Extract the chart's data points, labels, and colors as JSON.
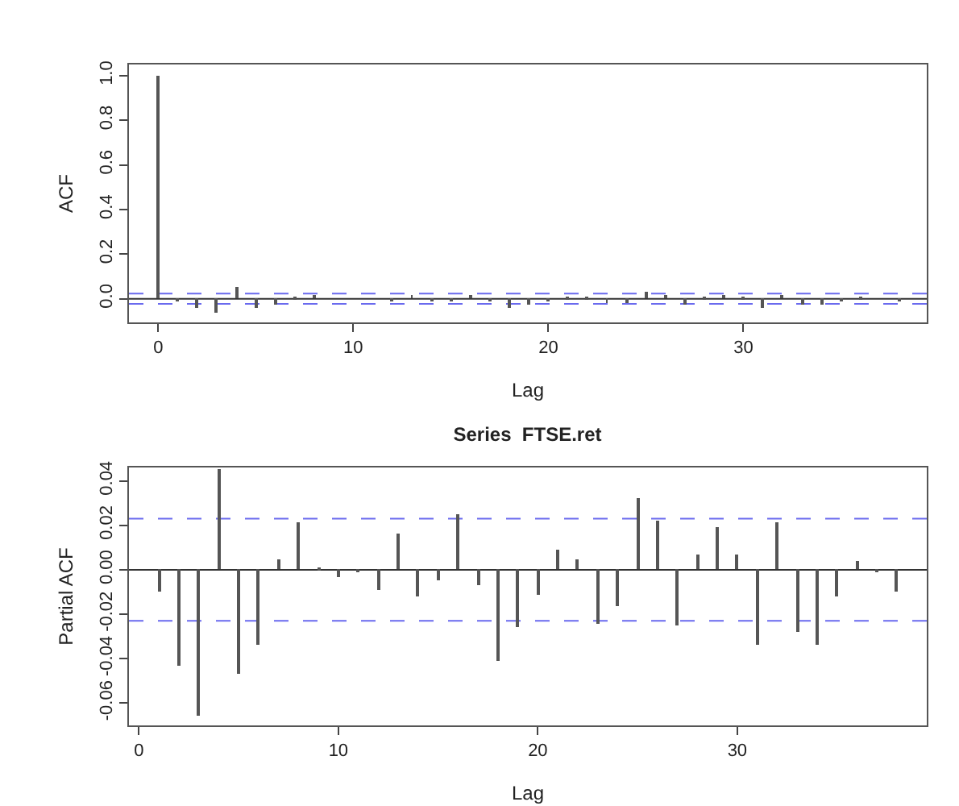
{
  "chart_data": [
    {
      "type": "bar",
      "xlabel": "Lag",
      "ylabel": "ACF",
      "x": [
        0,
        1,
        2,
        3,
        4,
        5,
        6,
        7,
        8,
        9,
        10,
        11,
        12,
        13,
        14,
        15,
        16,
        17,
        18,
        19,
        20,
        21,
        22,
        23,
        24,
        25,
        26,
        27,
        28,
        29,
        30,
        31,
        32,
        33,
        34,
        35,
        36,
        37,
        38
      ],
      "series": [
        {
          "color": "#555555",
          "values": [
            1,
            -0.01,
            -0.04,
            -0.06,
            0.05,
            -0.04,
            -0.03,
            0.01,
            0.02,
            0,
            0,
            0,
            -0.01,
            0.02,
            -0.01,
            -0.01,
            0.02,
            -0.01,
            -0.04,
            -0.03,
            -0.01,
            0.01,
            0.01,
            -0.02,
            -0.02,
            0.03,
            0.02,
            -0.03,
            0.01,
            0.02,
            0.01,
            -0.04,
            0.02,
            -0.03,
            -0.03,
            -0.01,
            0.01,
            0,
            -0.01
          ]
        }
      ],
      "xlim": [
        -1.5,
        39.4
      ],
      "xticks": [
        0,
        10,
        20,
        30
      ],
      "ylim": [
        -0.106,
        1.05
      ],
      "yticks": [
        {
          "value": 0,
          "label": "0.0"
        },
        0.2,
        0.4,
        0.6,
        0.8,
        {
          "value": 1,
          "label": "1.0"
        }
      ],
      "ref_lines": [
        {
          "axis": "y",
          "value": 0,
          "color": "#333333",
          "line_style": "solid"
        },
        {
          "axis": "y",
          "value": 0.023,
          "color": "#6a6aee",
          "line_style": "dashed"
        },
        {
          "axis": "y",
          "value": -0.023,
          "color": "#6a6aee",
          "line_style": "dashed"
        }
      ]
    },
    {
      "type": "bar",
      "title": "Series  FTSE.ret",
      "xlabel": "Lag",
      "ylabel": "Partial ACF",
      "x": [
        1,
        2,
        3,
        4,
        5,
        6,
        7,
        8,
        9,
        10,
        11,
        12,
        13,
        14,
        15,
        16,
        17,
        18,
        19,
        20,
        21,
        22,
        23,
        24,
        25,
        26,
        27,
        28,
        29,
        30,
        31,
        32,
        33,
        34,
        35,
        36,
        37,
        38
      ],
      "series": [
        {
          "color": "#555555",
          "values": [
            -0.01,
            -0.043,
            -0.066,
            0.045,
            -0.047,
            -0.034,
            0.005,
            0.021,
            0.001,
            -0.003,
            -0.001,
            -0.009,
            0.016,
            -0.012,
            -0.005,
            0.025,
            -0.007,
            -0.041,
            -0.026,
            -0.011,
            0.009,
            0.005,
            -0.024,
            -0.016,
            0.032,
            0.022,
            -0.025,
            0.007,
            0.019,
            0.007,
            -0.034,
            0.021,
            -0.028,
            -0.034,
            -0.012,
            0.004,
            -0.001,
            -0.01
          ]
        }
      ],
      "xlim": [
        -0.5,
        39.5
      ],
      "xticks": [
        0,
        10,
        20,
        30
      ],
      "ylim": [
        -0.07,
        0.046
      ],
      "yticks": [
        {
          "value": -0.06,
          "label": "-0.06"
        },
        {
          "value": -0.04,
          "label": "-0.04"
        },
        {
          "value": -0.02,
          "label": "-0.02"
        },
        {
          "value": 0,
          "label": "0.00"
        },
        {
          "value": 0.02,
          "label": "0.02"
        },
        {
          "value": 0.04,
          "label": "0.04"
        }
      ],
      "ref_lines": [
        {
          "axis": "y",
          "value": 0,
          "color": "#333333",
          "line_style": "solid"
        },
        {
          "axis": "y",
          "value": 0.023,
          "color": "#6a6aee",
          "line_style": "dashed"
        },
        {
          "axis": "y",
          "value": -0.023,
          "color": "#6a6aee",
          "line_style": "dashed"
        }
      ]
    }
  ]
}
